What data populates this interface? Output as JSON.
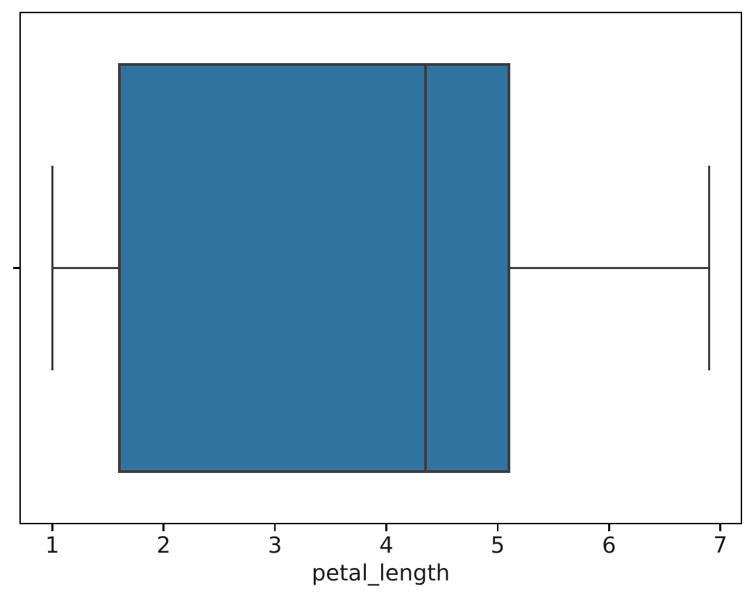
{
  "chart_data": {
    "type": "box",
    "orientation": "horizontal",
    "title": "",
    "xlabel": "petal_length",
    "ylabel": "",
    "stats": {
      "whisker_low": 1.0,
      "q1": 1.6,
      "median": 4.35,
      "q3": 5.1,
      "whisker_high": 6.9,
      "outliers": []
    },
    "xlim": [
      0.705,
      7.195
    ],
    "x_ticks": [
      1,
      2,
      3,
      4,
      5,
      6,
      7
    ],
    "x_tick_labels": [
      "1",
      "2",
      "3",
      "4",
      "5",
      "6",
      "7"
    ],
    "ylim": [
      -0.5,
      0.5
    ],
    "category_pos": 0,
    "box_width": 0.8,
    "cap_width": 0.4,
    "grid": false,
    "legend": null,
    "colors": {
      "box_fill": "#3174a1",
      "line": "#3d3d3d",
      "spine": "#000000",
      "tick_label": "#1a1a1a"
    }
  }
}
